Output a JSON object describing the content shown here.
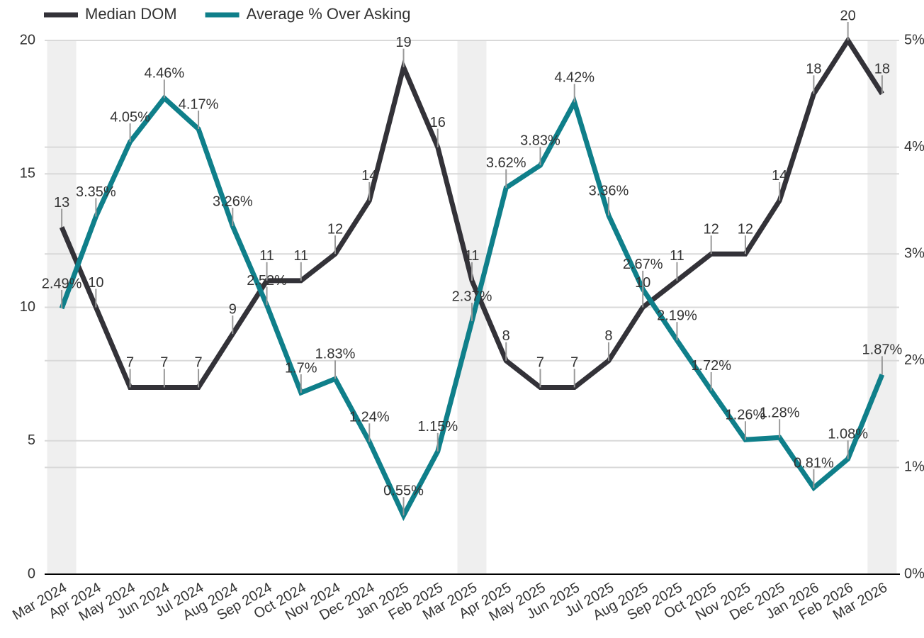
{
  "chart_data": {
    "type": "line",
    "categories": [
      "Mar 2024",
      "Apr 2024",
      "May 2024",
      "Jun 2024",
      "Jul 2024",
      "Aug 2024",
      "Sep 2024",
      "Oct 2024",
      "Nov 2024",
      "Dec 2024",
      "Jan 2025",
      "Feb 2025",
      "Mar 2025",
      "Apr 2025",
      "May 2025",
      "Jun 2025",
      "Jul 2025",
      "Aug 2025",
      "Sep 2025",
      "Oct 2025",
      "Nov 2025",
      "Dec 2025",
      "Jan 2026",
      "Feb 2026",
      "Mar 2026"
    ],
    "shaded_categories": [
      "Mar 2024",
      "Mar 2025",
      "Mar 2026"
    ],
    "series": [
      {
        "name": "Median DOM",
        "color": "#333238",
        "label_color": "#333238",
        "values": [
          13,
          10,
          7,
          7,
          7,
          9,
          11,
          11,
          12,
          14,
          19,
          16,
          11,
          8,
          7,
          7,
          8,
          10,
          11,
          12,
          12,
          14,
          18,
          20,
          18
        ]
      },
      {
        "name": "Average % Over Asking",
        "color": "#0f7f8a",
        "label_color": "#1a8f99",
        "axis": "y2",
        "values": [
          2.49,
          3.35,
          4.05,
          4.46,
          4.17,
          3.26,
          2.52,
          1.7,
          1.83,
          1.24,
          0.55,
          1.15,
          2.37,
          3.62,
          3.83,
          4.42,
          3.36,
          2.67,
          2.19,
          1.72,
          1.26,
          1.28,
          0.81,
          1.08,
          1.87
        ],
        "value_labels": [
          "2.49%",
          "3.35%",
          "4.05%",
          "4.46%",
          "4.17%",
          "3.26%",
          "2.52%",
          "1.7%",
          "1.83%",
          "1.24%",
          "0.55%",
          "1.15%",
          "2.37%",
          "3.62%",
          "3.83%",
          "4.42%",
          "3.36%",
          "2.67%",
          "2.19%",
          "1.72%",
          "1.26%",
          "1.28%",
          "0.81%",
          "1.08%",
          "1.87%"
        ]
      }
    ],
    "ylim": [
      0,
      20
    ],
    "yticks": [
      0,
      5,
      10,
      15,
      20
    ],
    "y2lim": [
      0,
      5
    ],
    "y2ticks": [
      {
        "value": 0,
        "label": "0%"
      },
      {
        "value": 1,
        "label": "1%"
      },
      {
        "value": 2,
        "label": "2%"
      },
      {
        "value": 3,
        "label": "3%"
      },
      {
        "value": 4,
        "label": "4%"
      },
      {
        "value": 5,
        "label": "5%"
      }
    ],
    "grid": true,
    "legend": "top-left"
  }
}
